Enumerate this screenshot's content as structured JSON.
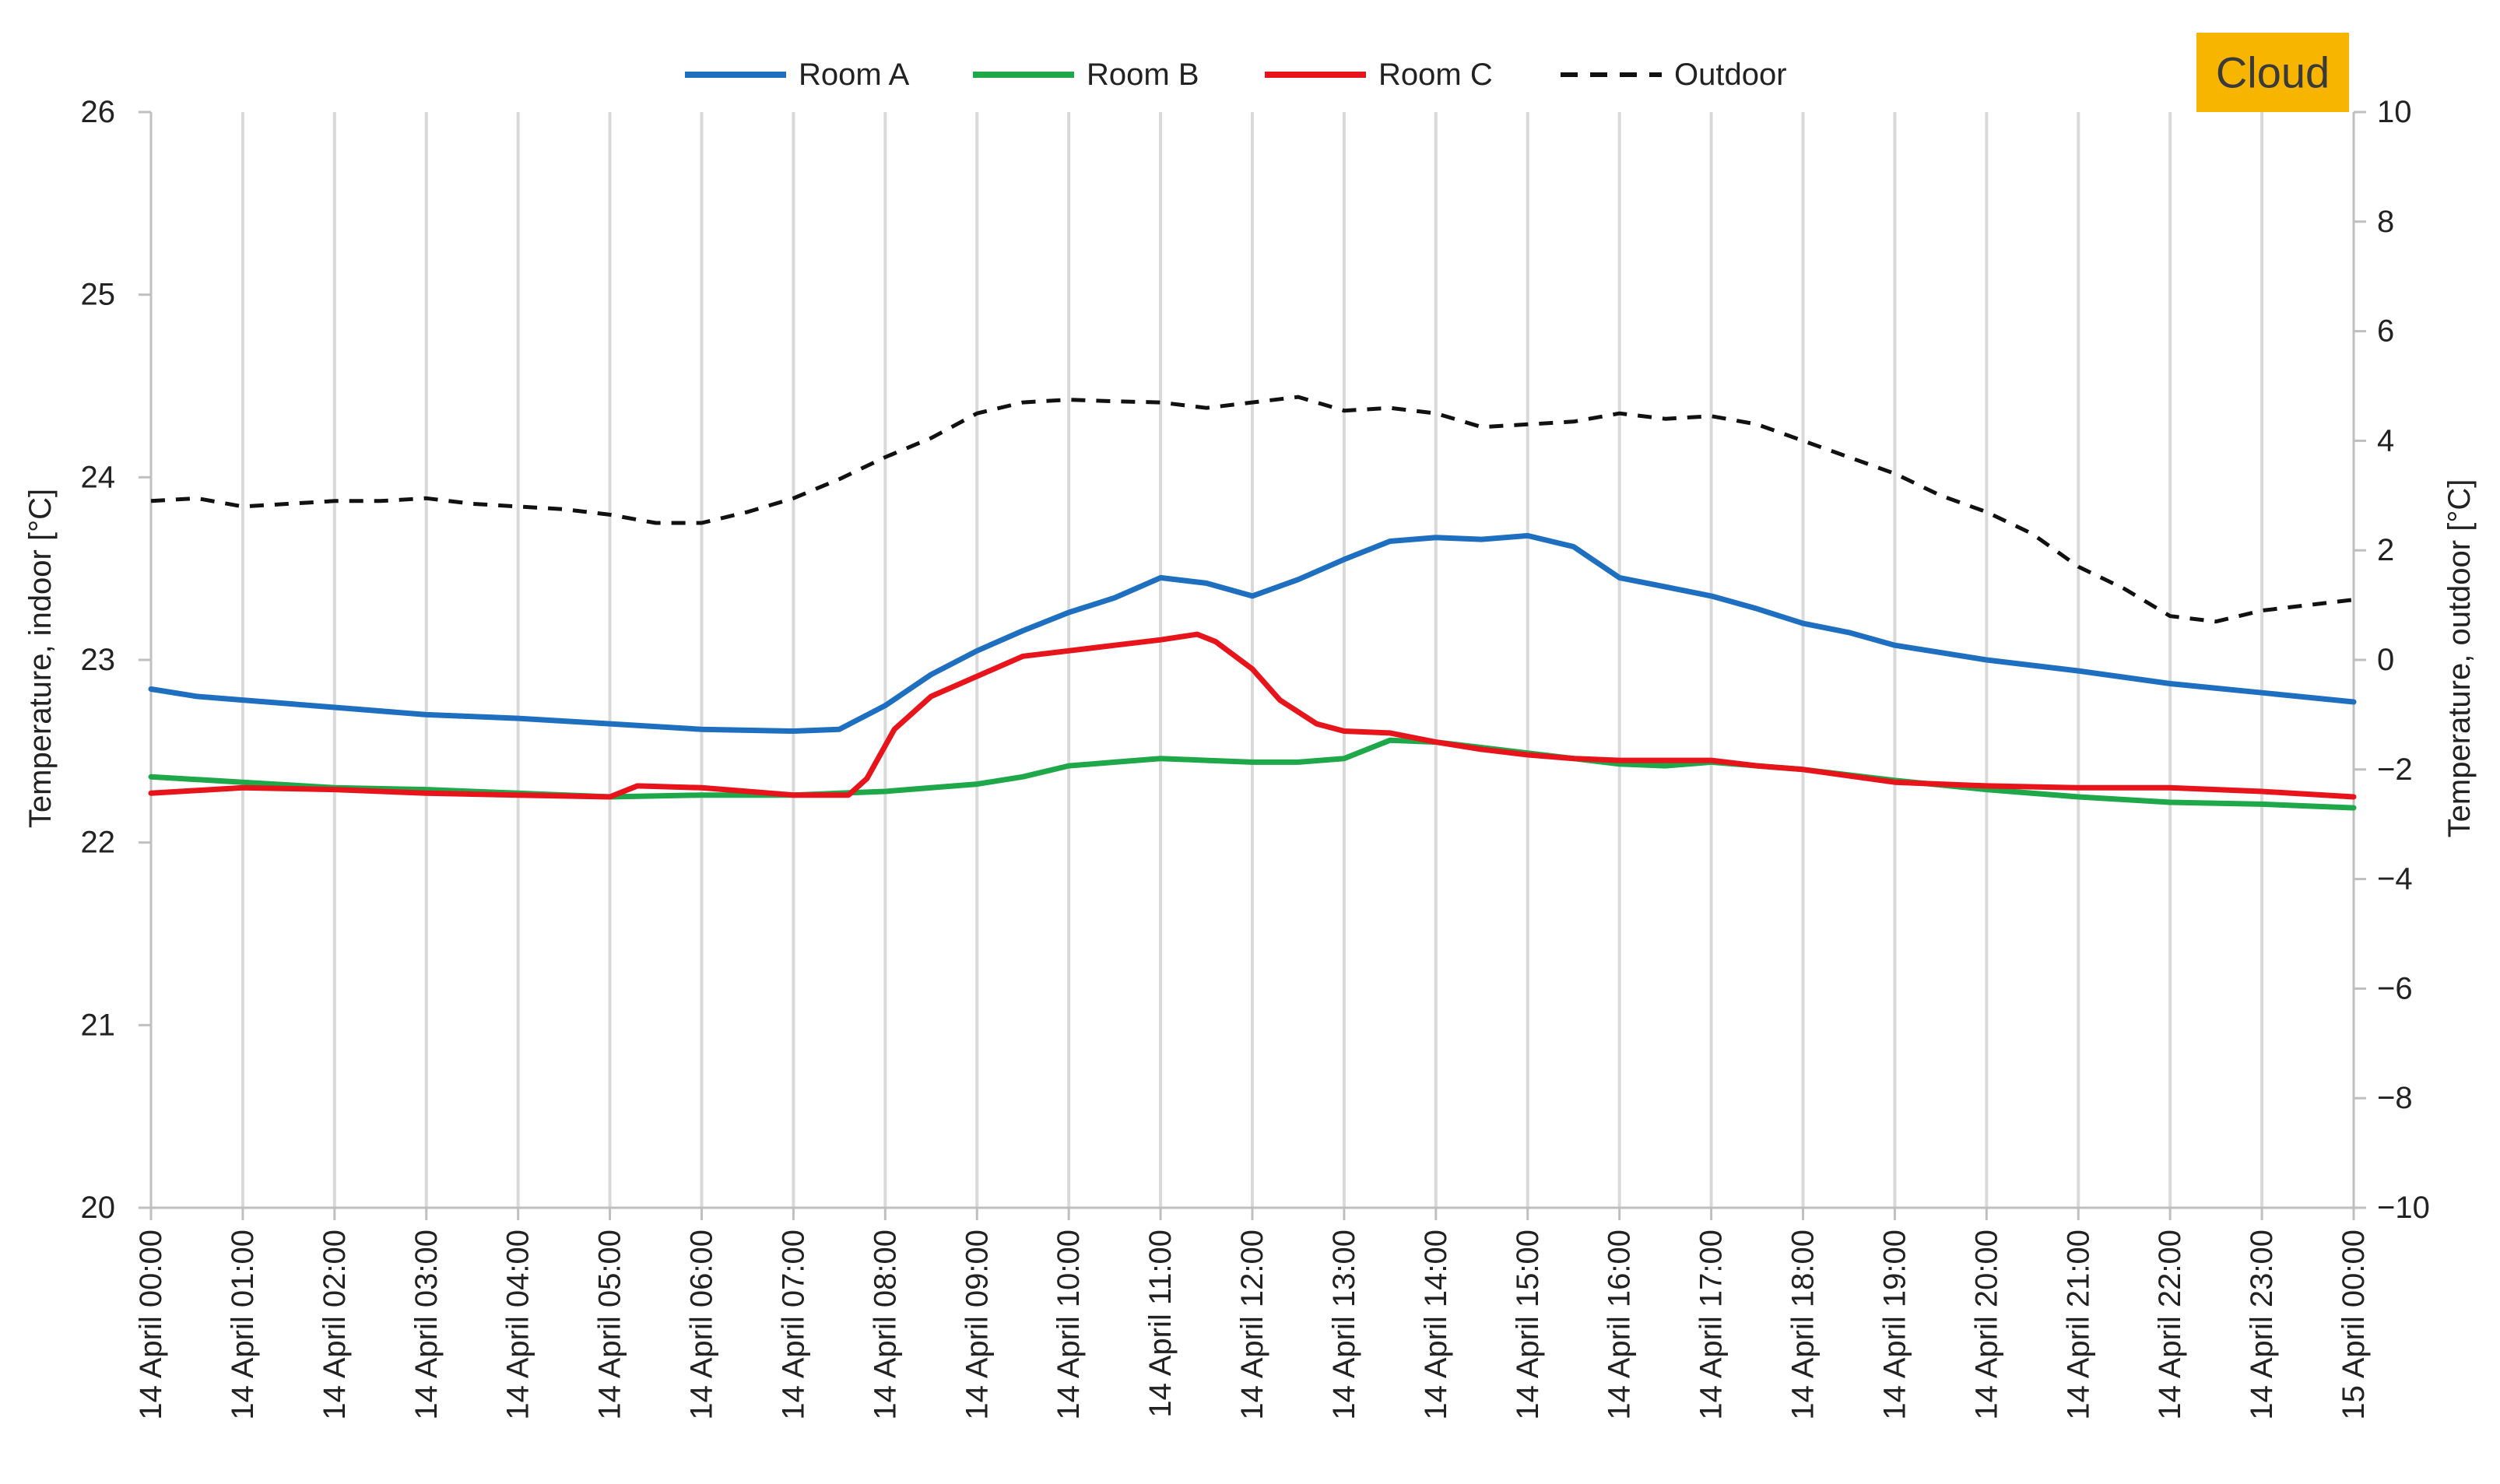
{
  "chart_data": {
    "type": "line",
    "badge": "Cloud",
    "y_left_label": "Temperature, indoor [°C]",
    "y_right_label": "Temperature, outdoor [°C]",
    "y_left_lim": [
      20,
      26
    ],
    "y_left_ticks": [
      20,
      21,
      22,
      23,
      24,
      25,
      26
    ],
    "y_right_lim": [
      -10,
      10
    ],
    "y_right_ticks": [
      -10,
      -8,
      -6,
      -4,
      -2,
      0,
      2,
      4,
      6,
      8,
      10
    ],
    "y_right_tick_labels": [
      "−10",
      "−8",
      "−6",
      "−4",
      "−2",
      "0",
      "2",
      "4",
      "6",
      "8",
      "10"
    ],
    "x_lim": [
      0,
      24
    ],
    "x_tick_labels": [
      "14 April 00:00",
      "14 April 01:00",
      "14 April 02:00",
      "14 April 03:00",
      "14 April 04:00",
      "14 April 05:00",
      "14 April 06:00",
      "14 April 07:00",
      "14 April 08:00",
      "14 April 09:00",
      "14 April 10:00",
      "14 April 11:00",
      "14 April 12:00",
      "14 April 13:00",
      "14 April 14:00",
      "14 April 15:00",
      "14 April 16:00",
      "14 April 17:00",
      "14 April 18:00",
      "14 April 19:00",
      "14 April 20:00",
      "14 April 21:00",
      "14 April 22:00",
      "14 April 23:00",
      "15 April 00:00"
    ],
    "grid": "vertical",
    "legend_position": "top-center",
    "series": [
      {
        "name": "Room A",
        "axis": "left",
        "color": "#1f6fc0",
        "dash": "solid",
        "x": [
          0,
          0.5,
          1,
          1.5,
          2,
          3,
          4,
          5,
          6,
          7,
          7.5,
          8,
          8.5,
          9,
          9.5,
          10,
          10.5,
          11,
          11.5,
          12,
          12.5,
          13,
          13.5,
          14,
          14.5,
          15,
          15.5,
          16,
          16.5,
          17,
          17.5,
          18,
          18.5,
          19,
          19.5,
          20,
          21,
          22,
          23,
          24
        ],
        "y": [
          22.84,
          22.8,
          22.78,
          22.76,
          22.74,
          22.7,
          22.68,
          22.65,
          22.62,
          22.61,
          22.62,
          22.75,
          22.92,
          23.05,
          23.16,
          23.26,
          23.34,
          23.45,
          23.42,
          23.35,
          23.44,
          23.55,
          23.65,
          23.67,
          23.66,
          23.68,
          23.62,
          23.45,
          23.4,
          23.35,
          23.28,
          23.2,
          23.15,
          23.08,
          23.04,
          23.0,
          22.94,
          22.87,
          22.82,
          22.77
        ]
      },
      {
        "name": "Room B",
        "axis": "left",
        "color": "#1fa84a",
        "dash": "solid",
        "x": [
          0,
          1,
          2,
          3,
          4,
          5,
          6,
          7,
          7.5,
          8,
          8.5,
          9,
          9.5,
          10,
          10.5,
          11,
          11.5,
          12,
          12.5,
          13,
          13.5,
          14,
          14.5,
          15,
          15.5,
          16,
          16.5,
          17,
          17.5,
          18,
          18.5,
          19,
          20,
          21,
          22,
          23,
          24
        ],
        "y": [
          22.36,
          22.33,
          22.3,
          22.29,
          22.27,
          22.25,
          22.26,
          22.26,
          22.27,
          22.28,
          22.3,
          22.32,
          22.36,
          22.42,
          22.44,
          22.46,
          22.45,
          22.44,
          22.44,
          22.46,
          22.56,
          22.55,
          22.52,
          22.49,
          22.46,
          22.43,
          22.42,
          22.44,
          22.42,
          22.4,
          22.37,
          22.34,
          22.29,
          22.25,
          22.22,
          22.21,
          22.19
        ]
      },
      {
        "name": "Room C",
        "axis": "left",
        "color": "#e8141c",
        "dash": "solid",
        "x": [
          0,
          1,
          2,
          3,
          4,
          5,
          5.3,
          6,
          7,
          7.6,
          7.8,
          8.1,
          8.5,
          9,
          9.5,
          10,
          10.5,
          11,
          11.4,
          11.6,
          12,
          12.3,
          12.7,
          13,
          13.5,
          14,
          14.5,
          15,
          15.5,
          16,
          16.5,
          17,
          17.5,
          18,
          19,
          20,
          21,
          22,
          23,
          24
        ],
        "y": [
          22.27,
          22.3,
          22.29,
          22.27,
          22.26,
          22.25,
          22.31,
          22.3,
          22.26,
          22.26,
          22.35,
          22.62,
          22.8,
          22.91,
          23.02,
          23.05,
          23.08,
          23.11,
          23.14,
          23.1,
          22.95,
          22.78,
          22.65,
          22.61,
          22.6,
          22.55,
          22.51,
          22.48,
          22.46,
          22.45,
          22.45,
          22.45,
          22.42,
          22.4,
          22.33,
          22.31,
          22.3,
          22.3,
          22.28,
          22.25
        ]
      },
      {
        "name": "Outdoor",
        "axis": "right",
        "color": "#111111",
        "dash": "dashed",
        "x": [
          0,
          0.5,
          1,
          1.5,
          2,
          2.5,
          3,
          3.5,
          4,
          4.5,
          5,
          5.5,
          6,
          6.5,
          7,
          7.5,
          8,
          8.5,
          9,
          9.5,
          10,
          10.5,
          11,
          11.5,
          12,
          12.5,
          13,
          13.5,
          14,
          14.5,
          15,
          15.5,
          16,
          16.5,
          17,
          17.5,
          18,
          18.5,
          19,
          19.5,
          20,
          20.5,
          21,
          21.5,
          22,
          22.5,
          23,
          23.5,
          24
        ],
        "y": [
          2.9,
          2.95,
          2.8,
          2.85,
          2.9,
          2.9,
          2.95,
          2.85,
          2.8,
          2.75,
          2.65,
          2.5,
          2.5,
          2.7,
          2.95,
          3.3,
          3.7,
          4.05,
          4.5,
          4.7,
          4.75,
          4.72,
          4.7,
          4.6,
          4.7,
          4.8,
          4.55,
          4.6,
          4.5,
          4.25,
          4.3,
          4.35,
          4.5,
          4.4,
          4.45,
          4.3,
          4.0,
          3.7,
          3.4,
          3.0,
          2.7,
          2.3,
          1.7,
          1.3,
          0.8,
          0.7,
          0.9,
          1.0,
          1.1
        ]
      }
    ]
  }
}
